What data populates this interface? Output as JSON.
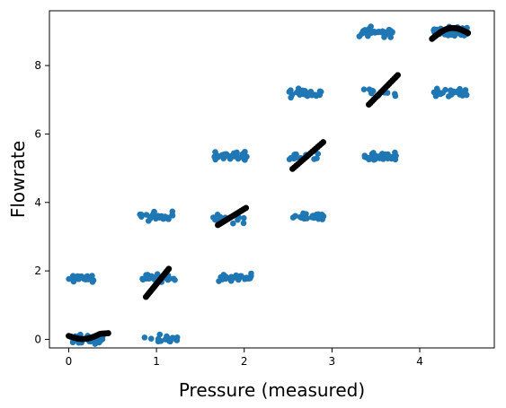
{
  "chart_data": {
    "type": "scatter",
    "title": "",
    "xlabel": "Pressure (measured)",
    "ylabel": "Flowrate",
    "xlim": [
      -0.22,
      4.85
    ],
    "ylim": [
      -0.25,
      9.6
    ],
    "xticks": [
      0,
      1,
      2,
      3,
      4
    ],
    "yticks": [
      0,
      2,
      4,
      6,
      8
    ],
    "grid": false,
    "legend": "none",
    "colors": {
      "blue": "#1f77b4",
      "black": "#000000",
      "frame": "#000000"
    },
    "blue_clusters": [
      {
        "cx": 0.15,
        "cy": 1.78,
        "n": 20
      },
      {
        "cx": 0.2,
        "cy": 0.0,
        "n": 40
      },
      {
        "cx": 1.0,
        "cy": 3.6,
        "n": 28
      },
      {
        "cx": 1.02,
        "cy": 1.8,
        "n": 28
      },
      {
        "cx": 1.05,
        "cy": 0.0,
        "n": 16
      },
      {
        "cx": 1.85,
        "cy": 5.38,
        "n": 34
      },
      {
        "cx": 1.83,
        "cy": 3.52,
        "n": 12
      },
      {
        "cx": 1.9,
        "cy": 1.8,
        "n": 34
      },
      {
        "cx": 2.7,
        "cy": 7.2,
        "n": 30
      },
      {
        "cx": 2.7,
        "cy": 5.35,
        "n": 14
      },
      {
        "cx": 2.72,
        "cy": 3.58,
        "n": 26
      },
      {
        "cx": 3.5,
        "cy": 8.98,
        "n": 34
      },
      {
        "cx": 3.55,
        "cy": 7.2,
        "n": 12
      },
      {
        "cx": 3.55,
        "cy": 5.35,
        "n": 32
      },
      {
        "cx": 4.35,
        "cy": 9.0,
        "n": 90
      },
      {
        "cx": 4.35,
        "cy": 7.2,
        "n": 30
      }
    ],
    "black_series": [
      {
        "x0": 0.0,
        "x1": 0.45,
        "y0": 0.1,
        "y1": 0.18,
        "dip": 0.12,
        "n": 24
      },
      {
        "x0": 0.88,
        "x1": 1.14,
        "y0": 1.24,
        "y1": 2.06,
        "dip": 0,
        "n": 22
      },
      {
        "x0": 1.7,
        "x1": 2.02,
        "y0": 3.34,
        "y1": 3.84,
        "dip": 0,
        "n": 18
      },
      {
        "x0": 2.55,
        "x1": 2.9,
        "y0": 4.98,
        "y1": 5.76,
        "dip": 0,
        "n": 18
      },
      {
        "x0": 3.42,
        "x1": 3.75,
        "y0": 6.86,
        "y1": 7.72,
        "dip": 0,
        "n": 18
      },
      {
        "x0": 4.14,
        "x1": 4.55,
        "y0": 8.78,
        "y1": 8.95,
        "arc": 0.25,
        "n": 36
      }
    ]
  }
}
